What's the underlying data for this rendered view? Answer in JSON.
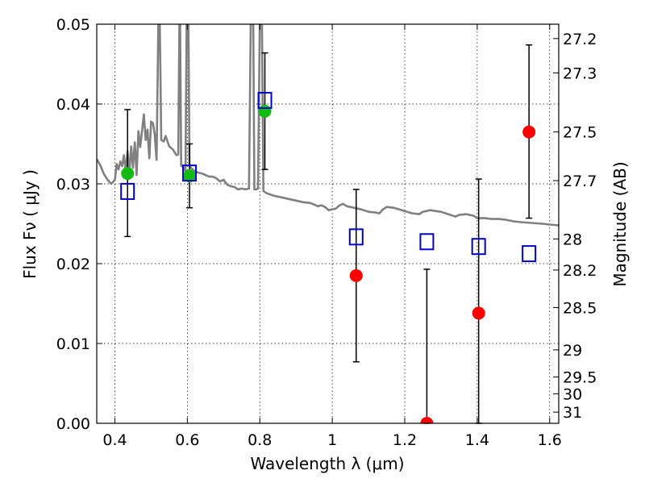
{
  "chart_data": {
    "type": "scatter",
    "xlabel": "Wavelength  λ (μm)",
    "ylabel": "Flux  Fν  ( μJy )",
    "y2label": "Magnitude (AB)",
    "xlim": [
      0.35,
      1.625
    ],
    "ylim": [
      0.0,
      0.05
    ],
    "grid": true,
    "x_ticks": [
      {
        "value": 0.4,
        "label": "0.4"
      },
      {
        "value": 0.6,
        "label": "0.6"
      },
      {
        "value": 0.8,
        "label": "0.8"
      },
      {
        "value": 1.0,
        "label": "1"
      },
      {
        "value": 1.2,
        "label": "1.2"
      },
      {
        "value": 1.4,
        "label": "1.4"
      },
      {
        "value": 1.6,
        "label": "1.6"
      }
    ],
    "y_ticks": [
      {
        "value": 0.0,
        "label": "0.00"
      },
      {
        "value": 0.01,
        "label": "0.01"
      },
      {
        "value": 0.02,
        "label": "0.02"
      },
      {
        "value": 0.03,
        "label": "0.03"
      },
      {
        "value": 0.04,
        "label": "0.04"
      },
      {
        "value": 0.05,
        "label": "0.05"
      }
    ],
    "y2_ticks": [
      {
        "label": "27.2",
        "flux": 0.0482
      },
      {
        "label": "27.3",
        "flux": 0.0439
      },
      {
        "label": "27.5",
        "flux": 0.0365
      },
      {
        "label": "27.7",
        "flux": 0.0304
      },
      {
        "label": "28",
        "flux": 0.0231
      },
      {
        "label": "28.2",
        "flux": 0.0192
      },
      {
        "label": "28.5",
        "flux": 0.0145
      },
      {
        "label": "29",
        "flux": 0.0092
      },
      {
        "label": "29.5",
        "flux": 0.0058
      },
      {
        "label": "30",
        "flux": 0.0037
      },
      {
        "label": "31",
        "flux": 0.0014
      }
    ],
    "series": [
      {
        "kind": "line",
        "color": "#808080",
        "points": [
          [
            0.35,
            0.0331
          ],
          [
            0.36,
            0.0323
          ],
          [
            0.37,
            0.0312
          ],
          [
            0.38,
            0.0305
          ],
          [
            0.39,
            0.03
          ],
          [
            0.4,
            0.0305
          ],
          [
            0.405,
            0.0325
          ],
          [
            0.41,
            0.0318
          ],
          [
            0.415,
            0.0328
          ],
          [
            0.42,
            0.0322
          ],
          [
            0.425,
            0.0336
          ],
          [
            0.43,
            0.0316
          ],
          [
            0.435,
            0.0341
          ],
          [
            0.44,
            0.0314
          ],
          [
            0.445,
            0.0347
          ],
          [
            0.45,
            0.032
          ],
          [
            0.455,
            0.0352
          ],
          [
            0.46,
            0.0311
          ],
          [
            0.465,
            0.0366
          ],
          [
            0.47,
            0.0346
          ],
          [
            0.48,
            0.0387
          ],
          [
            0.485,
            0.0355
          ],
          [
            0.49,
            0.0368
          ],
          [
            0.495,
            0.0332
          ],
          [
            0.5,
            0.0378
          ],
          [
            0.505,
            0.0376
          ],
          [
            0.51,
            0.0362
          ],
          [
            0.515,
            0.033
          ],
          [
            0.52,
            0.05
          ],
          [
            0.524,
            0.05
          ],
          [
            0.528,
            0.0355
          ],
          [
            0.535,
            0.0353
          ],
          [
            0.54,
            0.036
          ],
          [
            0.55,
            0.0347
          ],
          [
            0.56,
            0.0343
          ],
          [
            0.57,
            0.0336
          ],
          [
            0.575,
            0.0337
          ],
          [
            0.578,
            0.05
          ],
          [
            0.58,
            0.05
          ],
          [
            0.583,
            0.0323
          ],
          [
            0.59,
            0.032
          ],
          [
            0.595,
            0.0315
          ],
          [
            0.598,
            0.05
          ],
          [
            0.603,
            0.05
          ],
          [
            0.606,
            0.0325
          ],
          [
            0.61,
            0.032
          ],
          [
            0.62,
            0.0316
          ],
          [
            0.63,
            0.0314
          ],
          [
            0.64,
            0.0313
          ],
          [
            0.65,
            0.0311
          ],
          [
            0.66,
            0.0309
          ],
          [
            0.67,
            0.0309
          ],
          [
            0.68,
            0.0307
          ],
          [
            0.69,
            0.0303
          ],
          [
            0.7,
            0.0305
          ],
          [
            0.71,
            0.0299
          ],
          [
            0.72,
            0.0297
          ],
          [
            0.73,
            0.0296
          ],
          [
            0.74,
            0.0293
          ],
          [
            0.75,
            0.0294
          ],
          [
            0.76,
            0.0293
          ],
          [
            0.77,
            0.0294
          ],
          [
            0.775,
            0.05
          ],
          [
            0.782,
            0.05
          ],
          [
            0.785,
            0.0293
          ],
          [
            0.79,
            0.0293
          ],
          [
            0.795,
            0.0294
          ],
          [
            0.8,
            0.05
          ],
          [
            0.806,
            0.05
          ],
          [
            0.81,
            0.0291
          ],
          [
            0.82,
            0.0288
          ],
          [
            0.84,
            0.0285
          ],
          [
            0.86,
            0.0283
          ],
          [
            0.88,
            0.0281
          ],
          [
            0.9,
            0.0279
          ],
          [
            0.92,
            0.0277
          ],
          [
            0.94,
            0.0276
          ],
          [
            0.96,
            0.0272
          ],
          [
            0.97,
            0.0273
          ],
          [
            0.98,
            0.0271
          ],
          [
            0.99,
            0.0267
          ],
          [
            1.0,
            0.0268
          ],
          [
            1.01,
            0.0269
          ],
          [
            1.02,
            0.0273
          ],
          [
            1.03,
            0.0275
          ],
          [
            1.04,
            0.0272
          ],
          [
            1.06,
            0.027
          ],
          [
            1.08,
            0.0268
          ],
          [
            1.1,
            0.0265
          ],
          [
            1.12,
            0.0264
          ],
          [
            1.13,
            0.0263
          ],
          [
            1.14,
            0.0268
          ],
          [
            1.15,
            0.0271
          ],
          [
            1.17,
            0.027
          ],
          [
            1.2,
            0.0266
          ],
          [
            1.22,
            0.0263
          ],
          [
            1.24,
            0.0262
          ],
          [
            1.25,
            0.0265
          ],
          [
            1.27,
            0.0267
          ],
          [
            1.3,
            0.0265
          ],
          [
            1.32,
            0.0262
          ],
          [
            1.34,
            0.0259
          ],
          [
            1.35,
            0.0261
          ],
          [
            1.37,
            0.0262
          ],
          [
            1.39,
            0.026
          ],
          [
            1.4,
            0.0257
          ],
          [
            1.42,
            0.0257
          ],
          [
            1.44,
            0.0256
          ],
          [
            1.46,
            0.0256
          ],
          [
            1.48,
            0.0255
          ],
          [
            1.5,
            0.0253
          ],
          [
            1.52,
            0.0252
          ],
          [
            1.55,
            0.0251
          ],
          [
            1.58,
            0.025
          ],
          [
            1.6,
            0.0249
          ],
          [
            1.625,
            0.0248
          ]
        ]
      },
      {
        "kind": "scatter",
        "marker": "circle",
        "color": "#11bb11",
        "points": [
          {
            "x": 0.435,
            "y": 0.0313
          },
          {
            "x": 0.606,
            "y": 0.031
          },
          {
            "x": 0.814,
            "y": 0.0391
          }
        ]
      },
      {
        "kind": "scatter",
        "marker": "circle",
        "color": "#ff0000",
        "points": [
          {
            "x": 1.066,
            "y": 0.0185
          },
          {
            "x": 1.261,
            "y": 0.0
          },
          {
            "x": 1.404,
            "y": 0.0138
          },
          {
            "x": 1.543,
            "y": 0.0365
          }
        ]
      },
      {
        "kind": "scatter",
        "marker": "open-square",
        "color": "#0000cc",
        "points": [
          {
            "x": 0.435,
            "y": 0.029
          },
          {
            "x": 0.606,
            "y": 0.0313
          },
          {
            "x": 0.814,
            "y": 0.0404
          },
          {
            "x": 1.066,
            "y": 0.0233
          },
          {
            "x": 1.261,
            "y": 0.0227
          },
          {
            "x": 1.404,
            "y": 0.0221
          },
          {
            "x": 1.543,
            "y": 0.0212
          }
        ]
      },
      {
        "kind": "errorbar",
        "color": "#000000",
        "points": [
          {
            "x": 0.435,
            "low": 0.0234,
            "high": 0.0393
          },
          {
            "x": 0.606,
            "low": 0.027,
            "high": 0.035
          },
          {
            "x": 0.814,
            "low": 0.0318,
            "high": 0.0464
          },
          {
            "x": 1.066,
            "low": 0.0077,
            "high": 0.0293
          },
          {
            "x": 1.261,
            "low": 0.0,
            "high": 0.0193
          },
          {
            "x": 1.404,
            "low": 0.0,
            "high": 0.0306
          },
          {
            "x": 1.543,
            "low": 0.0257,
            "high": 0.0474
          }
        ]
      }
    ]
  }
}
